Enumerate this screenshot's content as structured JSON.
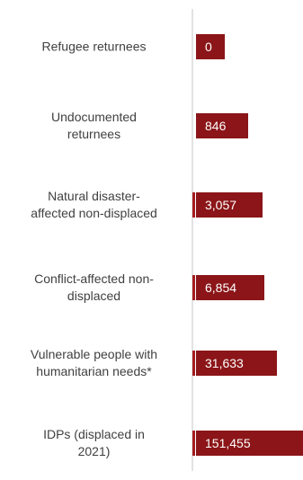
{
  "chart_data": {
    "type": "bar",
    "orientation": "horizontal",
    "categories": [
      "Refugee returnees",
      "Undocumented returnees",
      "Natural disaster-affected non-displaced",
      "Conflict-affected non-displaced",
      "Vulnerable people with humanitarian needs*",
      "IDPs (displaced in 2021)"
    ],
    "category_lines": [
      [
        "Refugee returnees"
      ],
      [
        "Undocumented",
        "returnees"
      ],
      [
        "Natural disaster-",
        "affected non-displaced"
      ],
      [
        "Conflict-affected non-",
        "displaced"
      ],
      [
        "Vulnerable people with",
        "humanitarian needs*"
      ],
      [
        "IDPs (displaced in",
        "2021)"
      ]
    ],
    "values": [
      0,
      846,
      3057,
      6854,
      31633,
      151455
    ],
    "data_labels": [
      "0",
      "846",
      "3,057",
      "6,854",
      "31,633",
      "151,455"
    ],
    "title": "",
    "xlabel": "",
    "ylabel": "",
    "grid": false,
    "legend": "none",
    "colors": {
      "bar": "#8b1518",
      "bar_accent": "#a31c20",
      "axis": "#d0d0d0",
      "label": "#404040",
      "value_text": "#ffffff"
    }
  }
}
